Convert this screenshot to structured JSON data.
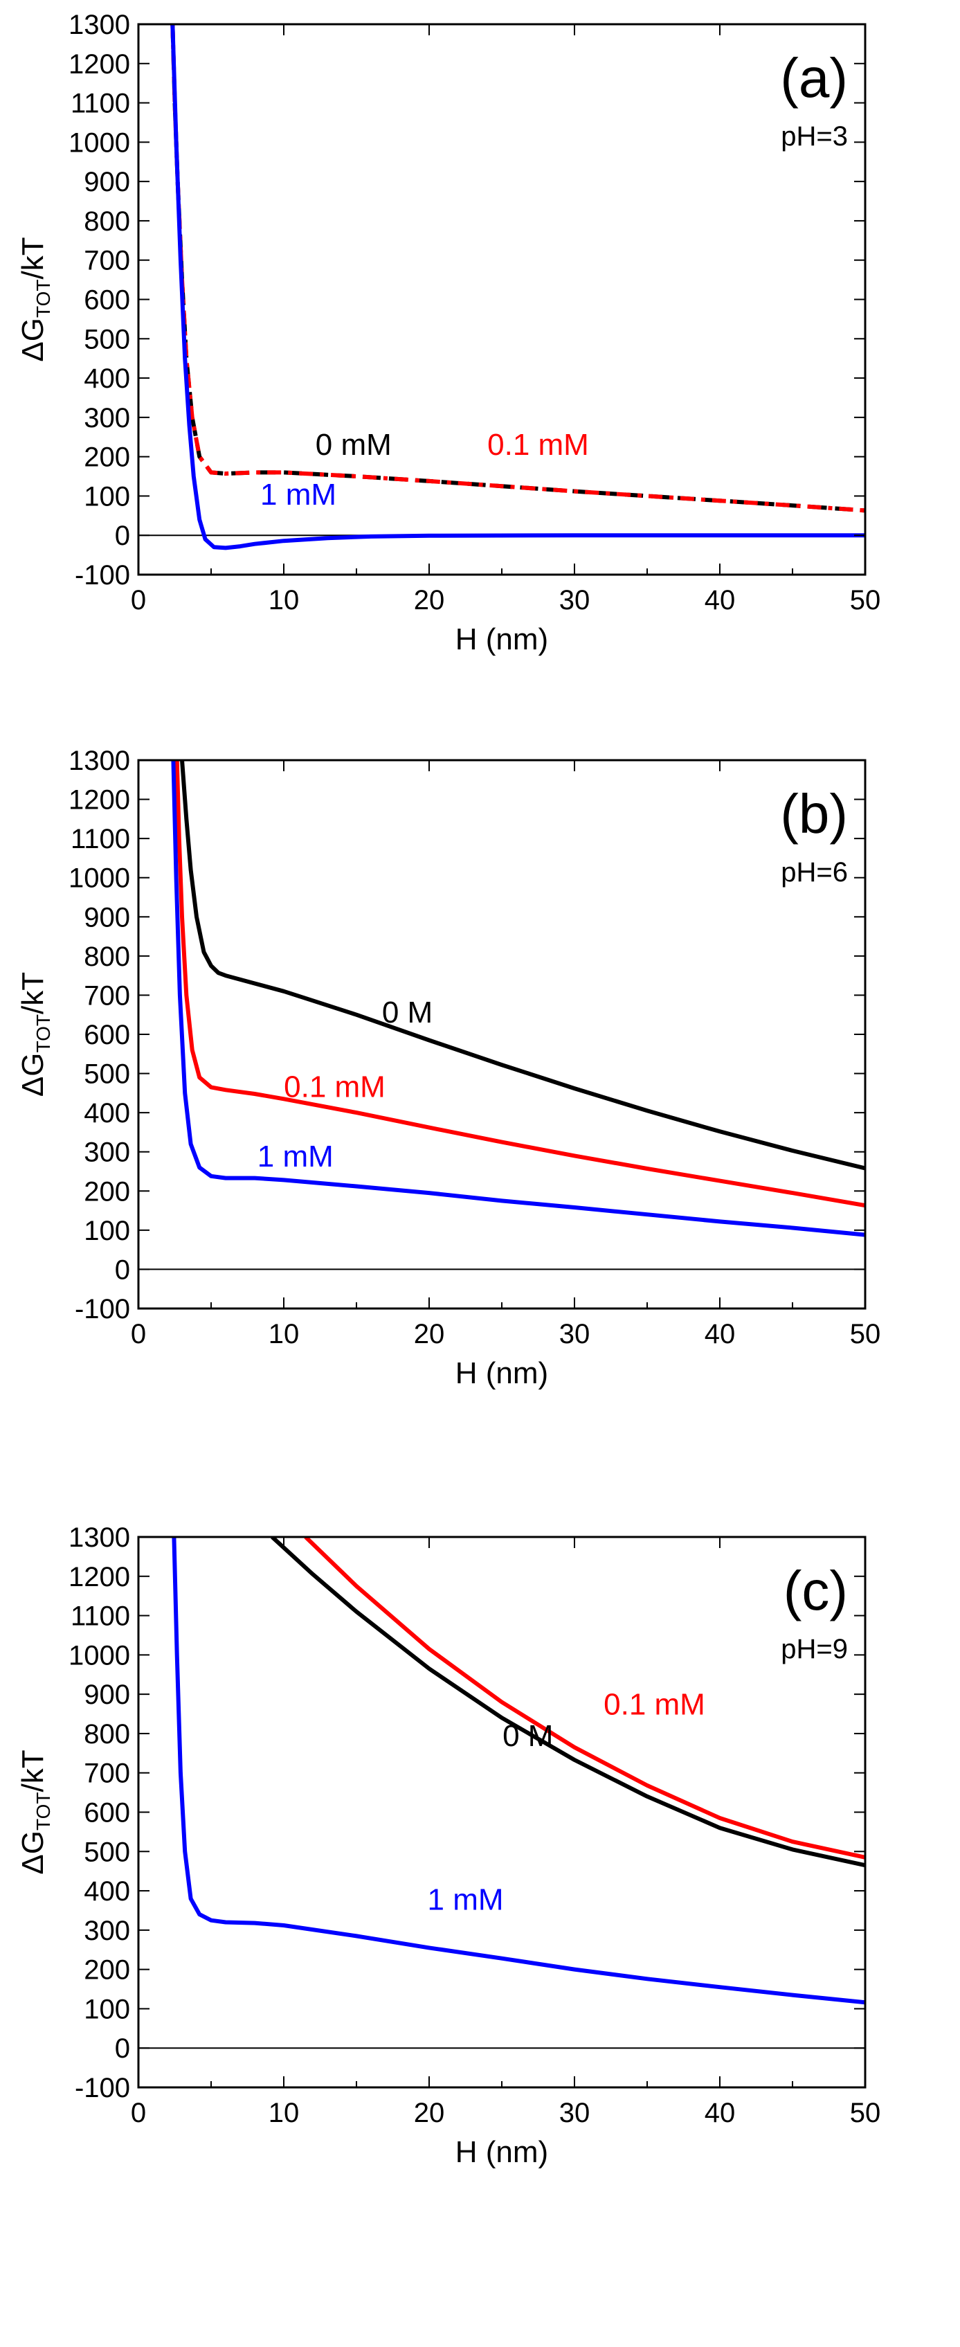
{
  "chart_data": [
    {
      "type": "line",
      "panel_label": "(a)",
      "annotation": "pH=3",
      "xlabel": "H (nm)",
      "ylabel_main": "ΔG",
      "ylabel_sub": "TOT",
      "ylabel_tail": "/kT",
      "xlim": [
        0,
        50
      ],
      "ylim": [
        -100,
        1300
      ],
      "xticks": [
        0,
        10,
        20,
        30,
        40,
        50
      ],
      "yticks": [
        -100,
        0,
        100,
        200,
        300,
        400,
        500,
        600,
        700,
        800,
        900,
        1000,
        1100,
        1200,
        1300
      ],
      "zero_line": true,
      "series": [
        {
          "name": "0 mM",
          "color": "#000000",
          "dash": "long-dash",
          "label_x": 14.8,
          "label_y": 205,
          "points": [
            [
              2.35,
              1300
            ],
            [
              2.5,
              1100
            ],
            [
              2.7,
              900
            ],
            [
              3.0,
              650
            ],
            [
              3.3,
              450
            ],
            [
              3.7,
              300
            ],
            [
              4.2,
              200
            ],
            [
              5.0,
              160
            ],
            [
              6.0,
              157
            ],
            [
              8,
              160
            ],
            [
              10,
              160
            ],
            [
              15,
              150
            ],
            [
              20,
              138
            ],
            [
              25,
              125
            ],
            [
              30,
              112
            ],
            [
              35,
              100
            ],
            [
              40,
              88
            ],
            [
              45,
              76
            ],
            [
              50,
              63
            ]
          ]
        },
        {
          "name": "0.1 mM",
          "color": "#ff0000",
          "dash": "dash-dot",
          "label_x": 27.5,
          "label_y": 205,
          "points": [
            [
              2.35,
              1300
            ],
            [
              2.5,
              1100
            ],
            [
              2.7,
              900
            ],
            [
              3.0,
              650
            ],
            [
              3.3,
              450
            ],
            [
              3.7,
              300
            ],
            [
              4.2,
              200
            ],
            [
              5.0,
              160
            ],
            [
              6.0,
              157
            ],
            [
              8,
              160
            ],
            [
              10,
              160
            ],
            [
              15,
              150
            ],
            [
              20,
              138
            ],
            [
              25,
              125
            ],
            [
              30,
              112
            ],
            [
              35,
              100
            ],
            [
              40,
              88
            ],
            [
              45,
              76
            ],
            [
              50,
              63
            ]
          ]
        },
        {
          "name": "1 mM",
          "color": "#0000ff",
          "dash": "solid",
          "label_x": 11,
          "label_y": 78,
          "points": [
            [
              2.35,
              1300
            ],
            [
              2.6,
              1000
            ],
            [
              2.9,
              700
            ],
            [
              3.2,
              450
            ],
            [
              3.5,
              280
            ],
            [
              3.8,
              150
            ],
            [
              4.2,
              40
            ],
            [
              4.6,
              -10
            ],
            [
              5.2,
              -30
            ],
            [
              6.0,
              -32
            ],
            [
              7,
              -28
            ],
            [
              8,
              -22
            ],
            [
              10,
              -14
            ],
            [
              13,
              -7
            ],
            [
              16,
              -3
            ],
            [
              20,
              -1
            ],
            [
              30,
              0
            ],
            [
              40,
              0
            ],
            [
              50,
              0
            ]
          ]
        }
      ]
    },
    {
      "type": "line",
      "panel_label": "(b)",
      "annotation": "pH=6",
      "xlabel": "H (nm)",
      "ylabel_main": "ΔG",
      "ylabel_sub": "TOT",
      "ylabel_tail": "/kT",
      "xlim": [
        0,
        50
      ],
      "ylim": [
        -100,
        1300
      ],
      "xticks": [
        0,
        10,
        20,
        30,
        40,
        50
      ],
      "yticks": [
        -100,
        0,
        100,
        200,
        300,
        400,
        500,
        600,
        700,
        800,
        900,
        1000,
        1100,
        1200,
        1300
      ],
      "zero_line": true,
      "series": [
        {
          "name": "0 M",
          "color": "#000000",
          "dash": "solid",
          "label_x": 18.5,
          "label_y": 630,
          "points": [
            [
              3.0,
              1300
            ],
            [
              3.3,
              1150
            ],
            [
              3.6,
              1020
            ],
            [
              4.0,
              900
            ],
            [
              4.5,
              810
            ],
            [
              5.0,
              775
            ],
            [
              5.5,
              757
            ],
            [
              6,
              750
            ],
            [
              8,
              730
            ],
            [
              10,
              710
            ],
            [
              12,
              686
            ],
            [
              15,
              650
            ],
            [
              20,
              585
            ],
            [
              25,
              522
            ],
            [
              30,
              462
            ],
            [
              35,
              405
            ],
            [
              40,
              352
            ],
            [
              45,
              303
            ],
            [
              50,
              258
            ]
          ]
        },
        {
          "name": "0.1 mM",
          "color": "#ff0000",
          "dash": "solid",
          "label_x": 13.5,
          "label_y": 440,
          "points": [
            [
              2.65,
              1300
            ],
            [
              2.8,
              1100
            ],
            [
              3.0,
              900
            ],
            [
              3.3,
              700
            ],
            [
              3.7,
              560
            ],
            [
              4.2,
              490
            ],
            [
              5.0,
              465
            ],
            [
              6,
              458
            ],
            [
              8,
              448
            ],
            [
              10,
              435
            ],
            [
              15,
              400
            ],
            [
              20,
              362
            ],
            [
              25,
              325
            ],
            [
              30,
              290
            ],
            [
              35,
              257
            ],
            [
              40,
              226
            ],
            [
              45,
              195
            ],
            [
              50,
              163
            ]
          ]
        },
        {
          "name": "1 mM",
          "color": "#0000ff",
          "dash": "solid",
          "label_x": 10.8,
          "label_y": 262,
          "points": [
            [
              2.4,
              1300
            ],
            [
              2.6,
              1000
            ],
            [
              2.85,
              700
            ],
            [
              3.2,
              450
            ],
            [
              3.6,
              320
            ],
            [
              4.2,
              260
            ],
            [
              5.0,
              238
            ],
            [
              6,
              233
            ],
            [
              8,
              233
            ],
            [
              10,
              228
            ],
            [
              15,
              212
            ],
            [
              20,
              195
            ],
            [
              25,
              175
            ],
            [
              30,
              158
            ],
            [
              35,
              140
            ],
            [
              40,
              122
            ],
            [
              45,
              106
            ],
            [
              50,
              88
            ]
          ]
        }
      ]
    },
    {
      "type": "line",
      "panel_label": "(c)",
      "annotation": "pH=9",
      "xlabel": "H (nm)",
      "ylabel_main": "ΔG",
      "ylabel_sub": "TOT",
      "ylabel_tail": "/kT",
      "xlim": [
        0,
        50
      ],
      "ylim": [
        -100,
        1300
      ],
      "xticks": [
        0,
        10,
        20,
        30,
        40,
        50
      ],
      "yticks": [
        -100,
        0,
        100,
        200,
        300,
        400,
        500,
        600,
        700,
        800,
        900,
        1000,
        1100,
        1200,
        1300
      ],
      "zero_line": true,
      "series": [
        {
          "name": "0 M",
          "color": "#000000",
          "dash": "solid",
          "label_x": 26.8,
          "label_y": 768,
          "points": [
            [
              9.2,
              1300
            ],
            [
              12,
              1205
            ],
            [
              15,
              1110
            ],
            [
              20,
              965
            ],
            [
              25,
              840
            ],
            [
              30,
              733
            ],
            [
              35,
              640
            ],
            [
              40,
              560
            ],
            [
              45,
              505
            ],
            [
              50,
              465
            ]
          ]
        },
        {
          "name": "0.1 mM",
          "color": "#ff0000",
          "dash": "solid",
          "label_x": 35.5,
          "label_y": 848,
          "points": [
            [
              11.5,
              1300
            ],
            [
              15,
              1175
            ],
            [
              20,
              1015
            ],
            [
              25,
              880
            ],
            [
              30,
              765
            ],
            [
              35,
              668
            ],
            [
              40,
              585
            ],
            [
              45,
              525
            ],
            [
              50,
              485
            ]
          ]
        },
        {
          "name": "1 mM",
          "color": "#0000ff",
          "dash": "solid",
          "label_x": 22.5,
          "label_y": 352,
          "points": [
            [
              2.45,
              1300
            ],
            [
              2.65,
              1000
            ],
            [
              2.9,
              700
            ],
            [
              3.2,
              500
            ],
            [
              3.6,
              380
            ],
            [
              4.2,
              340
            ],
            [
              5.0,
              325
            ],
            [
              6,
              320
            ],
            [
              8,
              318
            ],
            [
              10,
              312
            ],
            [
              15,
              285
            ],
            [
              20,
              255
            ],
            [
              25,
              228
            ],
            [
              30,
              200
            ],
            [
              35,
              176
            ],
            [
              40,
              155
            ],
            [
              45,
              135
            ],
            [
              50,
              116
            ]
          ]
        }
      ]
    }
  ]
}
